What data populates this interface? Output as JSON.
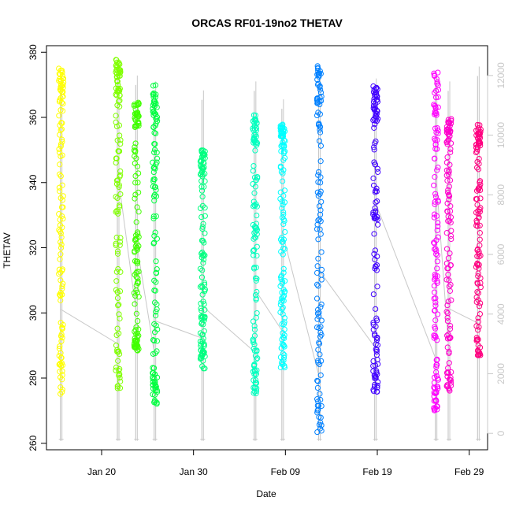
{
  "chart_data": {
    "type": "scatter",
    "title": "ORCAS RF01-19no2 THETAV",
    "xlabel": "Date",
    "ylabel": "THETAV",
    "x_domain": [
      "2016-01-14",
      "2016-03-02"
    ],
    "ylim": [
      258,
      382
    ],
    "y_ticks": [
      260,
      280,
      300,
      320,
      340,
      360,
      380
    ],
    "x_ticks": [
      {
        "date": "2016-01-20",
        "label": "Jan 20"
      },
      {
        "date": "2016-01-30",
        "label": "Jan 30"
      },
      {
        "date": "2016-02-09",
        "label": "Feb 09"
      },
      {
        "date": "2016-02-19",
        "label": "Feb 19"
      },
      {
        "date": "2016-02-29",
        "label": "Feb 29"
      }
    ],
    "y2_range": [
      -550,
      13000
    ],
    "y2_ticks": [
      0,
      2000,
      4000,
      6000,
      8000,
      10000,
      12000
    ],
    "y2_color": "#c8c8c8",
    "flights": [
      {
        "date": "2016-01-15.6",
        "ymin": 275,
        "ymax": 375,
        "color": "#ffff00",
        "alt_max": 12000
      },
      {
        "date": "2016-01-21.8",
        "ymin": 275,
        "ymax": 378,
        "color": "#80ff00",
        "alt_max": 12300
      },
      {
        "date": "2016-01-23.8",
        "ymin": 288,
        "ymax": 365,
        "color": "#40ff00",
        "alt_max": 12000
      },
      {
        "date": "2016-01-25.8",
        "ymin": 272,
        "ymax": 370,
        "color": "#00ff40",
        "alt_max": 11800
      },
      {
        "date": "2016-01-31.0",
        "ymin": 282,
        "ymax": 350,
        "color": "#00ff80",
        "alt_max": 11500
      },
      {
        "date": "2016-02-05.7",
        "ymin": 275,
        "ymax": 361,
        "color": "#00ffbf",
        "alt_max": 11800
      },
      {
        "date": "2016-02-08.7",
        "ymin": 283,
        "ymax": 358,
        "color": "#00ffff",
        "alt_max": 11200
      },
      {
        "date": "2016-02-12.7",
        "ymin": 263,
        "ymax": 377,
        "color": "#0080ff",
        "alt_max": 12000
      },
      {
        "date": "2016-02-18.8",
        "ymin": 275,
        "ymax": 370,
        "color": "#4000ff",
        "alt_max": 11900
      },
      {
        "date": "2016-02-25.4",
        "ymin": 270,
        "ymax": 374,
        "color": "#ff00ff",
        "alt_max": 12000
      },
      {
        "date": "2016-02-26.8",
        "ymin": 275,
        "ymax": 360,
        "color": "#ff00cc",
        "alt_max": 11800
      },
      {
        "date": "2016-03-01.0",
        "ymin": 286,
        "ymax": 358,
        "color": "#ff0080",
        "alt_max": 12300
      }
    ]
  }
}
